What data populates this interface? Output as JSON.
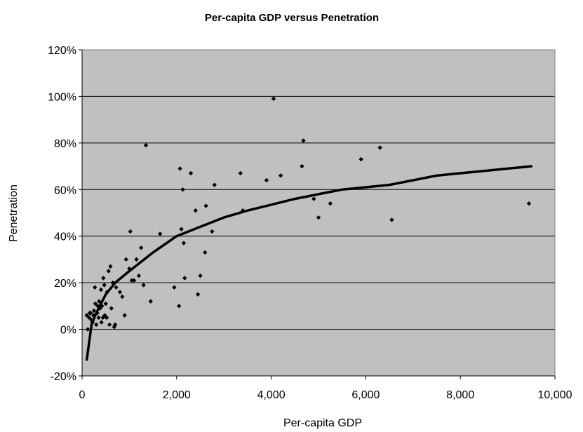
{
  "chart_data": {
    "type": "scatter",
    "title": "Per-capita GDP versus Penetration",
    "xlabel": "Per-capita GDP",
    "ylabel": "Penetration",
    "xlim": [
      0,
      10000
    ],
    "ylim": [
      -0.2,
      1.2
    ],
    "x_ticks": [
      {
        "value": 0,
        "label": "0"
      },
      {
        "value": 2000,
        "label": "2,000"
      },
      {
        "value": 4000,
        "label": "4,000"
      },
      {
        "value": 6000,
        "label": "6,000"
      },
      {
        "value": 8000,
        "label": "8,000"
      },
      {
        "value": 10000,
        "label": "10,000"
      }
    ],
    "y_ticks": [
      {
        "value": -0.2,
        "label": "-20%"
      },
      {
        "value": 0,
        "label": "0%"
      },
      {
        "value": 0.2,
        "label": "20%"
      },
      {
        "value": 0.4,
        "label": "40%"
      },
      {
        "value": 0.6,
        "label": "60%"
      },
      {
        "value": 0.8,
        "label": "80%"
      },
      {
        "value": 1.0,
        "label": "100%"
      },
      {
        "value": 1.2,
        "label": "120%"
      }
    ],
    "grid": "horizontal",
    "plot_background": "#c0c0c0",
    "marker_color": "#000000",
    "series": [
      {
        "type": "scatter",
        "points": [
          [
            100,
            0.06
          ],
          [
            120,
            0.0
          ],
          [
            150,
            0.05
          ],
          [
            160,
            0.07
          ],
          [
            180,
            0.07
          ],
          [
            200,
            0.04
          ],
          [
            220,
            0.03
          ],
          [
            240,
            0.06
          ],
          [
            250,
            0.08
          ],
          [
            270,
            0.18
          ],
          [
            280,
            0.11
          ],
          [
            300,
            0.02
          ],
          [
            320,
            0.07
          ],
          [
            330,
            0.1
          ],
          [
            350,
            0.05
          ],
          [
            360,
            0.12
          ],
          [
            380,
            0.09
          ],
          [
            400,
            0.17
          ],
          [
            410,
            0.03
          ],
          [
            420,
            0.1
          ],
          [
            440,
            0.05
          ],
          [
            450,
            0.22
          ],
          [
            470,
            0.19
          ],
          [
            480,
            0.06
          ],
          [
            500,
            0.11
          ],
          [
            520,
            0.05
          ],
          [
            530,
            0.16
          ],
          [
            560,
            0.25
          ],
          [
            580,
            0.02
          ],
          [
            600,
            0.27
          ],
          [
            620,
            0.09
          ],
          [
            650,
            0.2
          ],
          [
            680,
            0.01
          ],
          [
            700,
            0.02
          ],
          [
            720,
            0.18
          ],
          [
            800,
            0.16
          ],
          [
            850,
            0.14
          ],
          [
            900,
            0.06
          ],
          [
            930,
            0.3
          ],
          [
            1000,
            0.26
          ],
          [
            1020,
            0.42
          ],
          [
            1050,
            0.21
          ],
          [
            1100,
            0.21
          ],
          [
            1150,
            0.3
          ],
          [
            1200,
            0.23
          ],
          [
            1250,
            0.35
          ],
          [
            1300,
            0.19
          ],
          [
            1350,
            0.79
          ],
          [
            1450,
            0.12
          ],
          [
            1650,
            0.41
          ],
          [
            1950,
            0.18
          ],
          [
            2050,
            0.1
          ],
          [
            2070,
            0.69
          ],
          [
            2100,
            0.43
          ],
          [
            2130,
            0.6
          ],
          [
            2150,
            0.37
          ],
          [
            2170,
            0.22
          ],
          [
            2300,
            0.67
          ],
          [
            2400,
            0.51
          ],
          [
            2450,
            0.15
          ],
          [
            2500,
            0.23
          ],
          [
            2600,
            0.33
          ],
          [
            2620,
            0.53
          ],
          [
            2750,
            0.42
          ],
          [
            2800,
            0.62
          ],
          [
            3350,
            0.67
          ],
          [
            3400,
            0.51
          ],
          [
            3900,
            0.64
          ],
          [
            4050,
            0.99
          ],
          [
            4200,
            0.66
          ],
          [
            4650,
            0.7
          ],
          [
            4680,
            0.81
          ],
          [
            4900,
            0.56
          ],
          [
            5000,
            0.48
          ],
          [
            5250,
            0.54
          ],
          [
            5900,
            0.73
          ],
          [
            6300,
            0.78
          ],
          [
            6550,
            0.47
          ],
          [
            9450,
            0.54
          ]
        ]
      },
      {
        "type": "line",
        "points": [
          [
            100,
            -0.13
          ],
          [
            200,
            0.02
          ],
          [
            300,
            0.07
          ],
          [
            400,
            0.11
          ],
          [
            500,
            0.15
          ],
          [
            700,
            0.2
          ],
          [
            1000,
            0.25
          ],
          [
            1500,
            0.33
          ],
          [
            2000,
            0.4
          ],
          [
            2500,
            0.44
          ],
          [
            3000,
            0.48
          ],
          [
            3500,
            0.51
          ],
          [
            4000,
            0.535
          ],
          [
            4500,
            0.56
          ],
          [
            5000,
            0.58
          ],
          [
            5500,
            0.6
          ],
          [
            6000,
            0.61
          ],
          [
            6500,
            0.62
          ],
          [
            7000,
            0.64
          ],
          [
            7500,
            0.66
          ],
          [
            8000,
            0.67
          ],
          [
            8500,
            0.68
          ],
          [
            9000,
            0.69
          ],
          [
            9500,
            0.7
          ]
        ]
      }
    ]
  }
}
